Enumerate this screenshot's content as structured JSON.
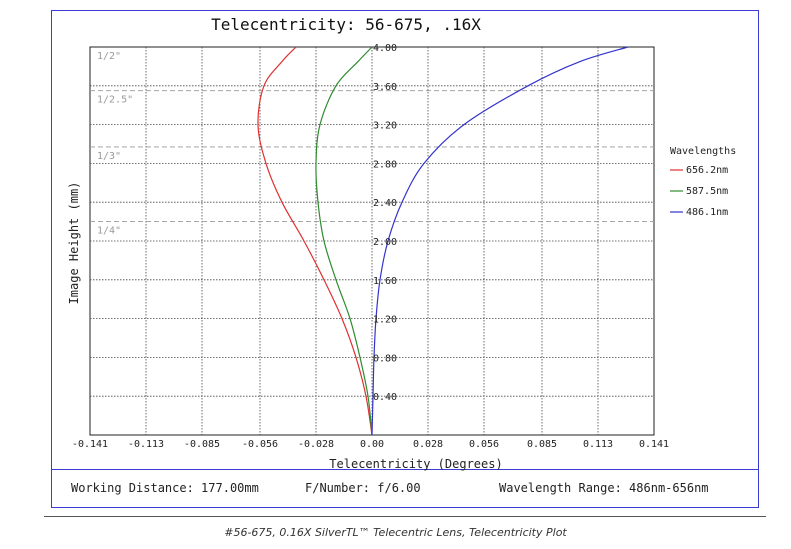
{
  "chart_data": {
    "type": "line",
    "title": "Telecentricity: 56-675, .16X",
    "xlabel": "Telecentricity (Degrees)",
    "ylabel": "Image Height (mm)",
    "xlim": [
      -0.141,
      0.141
    ],
    "ylim": [
      0,
      4.0
    ],
    "x_ticks": [
      "-0.141",
      "-0.113",
      "-0.085",
      "-0.056",
      "-0.028",
      "0.00",
      "0.028",
      "0.056",
      "0.085",
      "0.113",
      "0.141"
    ],
    "y_ticks": [
      "0.40",
      "0.80",
      "1.20",
      "1.60",
      "2.00",
      "2.40",
      "2.80",
      "3.20",
      "3.60",
      "4.00"
    ],
    "grid": true,
    "legend_title": "Wavelengths",
    "legend_position": "right",
    "sensor_markers": [
      {
        "label": "1/2\"",
        "y": 4.0
      },
      {
        "label": "1/2.5\"",
        "y": 3.55
      },
      {
        "label": "1/3\"",
        "y": 2.97
      },
      {
        "label": "1/4\"",
        "y": 2.2
      }
    ],
    "series": [
      {
        "name": "656.2nm",
        "color": "#e03030",
        "points": [
          [
            0,
            0
          ],
          [
            -0.003,
            0.4
          ],
          [
            -0.008,
            0.8
          ],
          [
            -0.015,
            1.2
          ],
          [
            -0.024,
            1.6
          ],
          [
            -0.034,
            2.0
          ],
          [
            -0.045,
            2.4
          ],
          [
            -0.053,
            2.8
          ],
          [
            -0.057,
            3.2
          ],
          [
            -0.054,
            3.6
          ],
          [
            -0.045,
            3.85
          ],
          [
            -0.038,
            4.0
          ]
        ]
      },
      {
        "name": "587.5nm",
        "color": "#2e8b2e",
        "points": [
          [
            0,
            0
          ],
          [
            -0.002,
            0.4
          ],
          [
            -0.006,
            0.8
          ],
          [
            -0.011,
            1.2
          ],
          [
            -0.018,
            1.6
          ],
          [
            -0.024,
            2.0
          ],
          [
            -0.027,
            2.4
          ],
          [
            -0.028,
            2.8
          ],
          [
            -0.026,
            3.2
          ],
          [
            -0.018,
            3.6
          ],
          [
            -0.007,
            3.85
          ],
          [
            0.0,
            4.0
          ]
        ]
      },
      {
        "name": "486.1nm",
        "color": "#3333cc",
        "points": [
          [
            0,
            0
          ],
          [
            0.0005,
            0.4
          ],
          [
            0.001,
            0.8
          ],
          [
            0.002,
            1.2
          ],
          [
            0.004,
            1.6
          ],
          [
            0.008,
            2.0
          ],
          [
            0.015,
            2.4
          ],
          [
            0.026,
            2.8
          ],
          [
            0.046,
            3.2
          ],
          [
            0.078,
            3.6
          ],
          [
            0.104,
            3.85
          ],
          [
            0.128,
            4.0
          ]
        ]
      }
    ]
  },
  "info": {
    "working_distance": "Working Distance: 177.00mm",
    "f_number": "F/Number: f/6.00",
    "wavelength_range": "Wavelength Range: 486nm-656nm"
  },
  "caption": "#56-675, 0.16X SilverTL™ Telecentric Lens, Telecentricity Plot"
}
